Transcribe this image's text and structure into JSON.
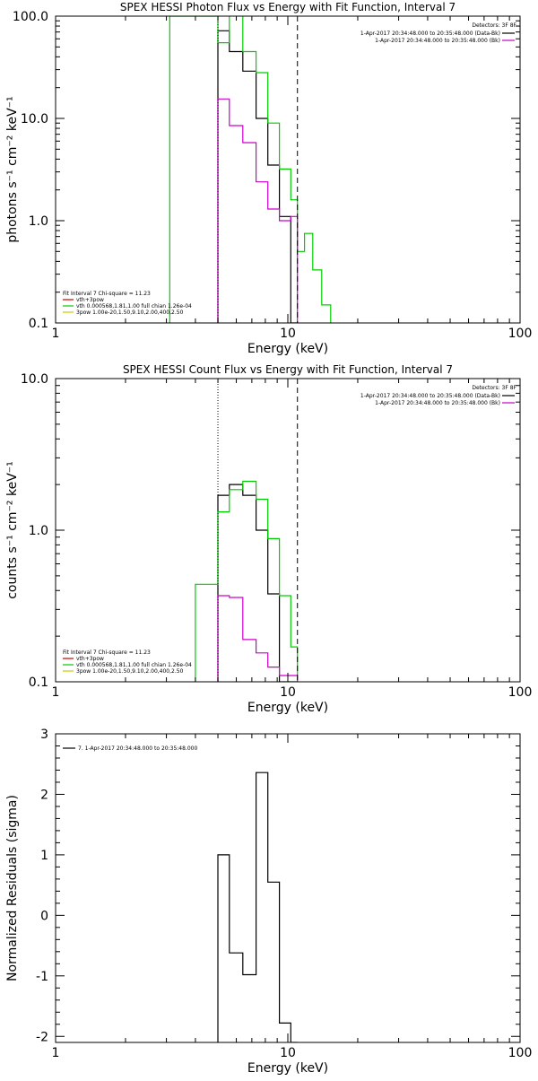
{
  "chart_data": [
    {
      "type": "line",
      "title": "SPEX HESSI Photon Flux vs Energy with Fit Function, Interval 7",
      "xlabel": "Energy (keV)",
      "ylabel": "photons s⁻¹ cm⁻² keV⁻¹",
      "xscale": "log",
      "yscale": "log",
      "xlim": [
        1,
        100
      ],
      "ylim": [
        0.1,
        100
      ],
      "xticks": [
        1,
        10,
        100
      ],
      "xtick_labels": [
        "1",
        "10",
        "100"
      ],
      "yticks": [
        0.1,
        1,
        10,
        100
      ],
      "ytick_labels": [
        "0.1",
        "1.0",
        "10.0",
        "100.0"
      ],
      "vlines": [
        {
          "x": 5.0,
          "style": "dotted"
        },
        {
          "x": 11.0,
          "style": "dashed"
        }
      ],
      "legend_right": {
        "placement": "top-right",
        "header": "Detectors: 3F 8F",
        "entries": [
          {
            "text": "1-Apr-2017 20:34:48.000 to 20:35:48.000 (Data-Bk)",
            "color": "#000000"
          },
          {
            "text": "1-Apr-2017 20:34:48.000 to 20:35:48.000 (Bk)",
            "color": "#cc00cc"
          }
        ]
      },
      "legend_left": {
        "placement": "bottom-left",
        "header": "Fit Interval 7   Chi-square = 11.23",
        "entries": [
          {
            "text": "vth+3pow",
            "color": "#cc0000"
          },
          {
            "text": "vth 0.000568,1.81,1.00  full chian 1.26e-04",
            "color": "#00cc00"
          },
          {
            "text": "3pow 1.00e-20,1.50,9.10,2.00,400,2.50",
            "color": "#cccc00"
          }
        ]
      },
      "series": [
        {
          "color": "#000000",
          "edges": [
            5.0,
            5.6,
            6.4,
            7.3,
            8.2,
            9.2,
            10.3,
            11.0
          ],
          "values": [
            72,
            45,
            29,
            10,
            3.5,
            1.1,
            0.1
          ]
        },
        {
          "color": "#00cc00",
          "edges": [
            3.1,
            5.0,
            5.6,
            6.4,
            7.3,
            8.2,
            9.2,
            10.3,
            11.0,
            11.8,
            12.8,
            14.0,
            15.3
          ],
          "values": [
            100,
            55,
            105,
            45,
            28,
            9,
            3.2,
            1.6,
            0.5,
            0.75,
            0.33,
            0.15,
            0.1
          ]
        },
        {
          "color": "#cc00cc",
          "edges": [
            5.0,
            5.6,
            6.4,
            7.3,
            8.2,
            9.2,
            10.3,
            11.0
          ],
          "values": [
            15.5,
            8.5,
            5.8,
            2.4,
            1.3,
            1.0,
            1.1
          ]
        }
      ]
    },
    {
      "type": "line",
      "title": "SPEX HESSI Count Flux vs Energy with Fit Function, Interval 7",
      "xlabel": "Energy (keV)",
      "ylabel": "counts s⁻¹ cm⁻² keV⁻¹",
      "xscale": "log",
      "yscale": "log",
      "xlim": [
        1,
        100
      ],
      "ylim": [
        0.1,
        10
      ],
      "xticks": [
        1,
        10,
        100
      ],
      "xtick_labels": [
        "1",
        "10",
        "100"
      ],
      "yticks": [
        0.1,
        1,
        10
      ],
      "ytick_labels": [
        "0.1",
        "1.0",
        "10.0"
      ],
      "vlines": [
        {
          "x": 5.0,
          "style": "dotted"
        },
        {
          "x": 11.0,
          "style": "dashed"
        }
      ],
      "legend_right": {
        "placement": "top-right",
        "header": "Detectors: 3F 8F",
        "entries": [
          {
            "text": "1-Apr-2017 20:34:48.000 to 20:35:48.000 (Data-Bk)",
            "color": "#000000"
          },
          {
            "text": "1-Apr-2017 20:34:48.000 to 20:35:48.000 (Bk)",
            "color": "#cc00cc"
          }
        ]
      },
      "legend_left": {
        "placement": "bottom-left",
        "header": "Fit Interval 7   Chi-square = 11.23",
        "entries": [
          {
            "text": "vth+3pow",
            "color": "#cc0000"
          },
          {
            "text": "vth 0.000568,1.81,1.00  full chian 1.26e-04",
            "color": "#00cc00"
          },
          {
            "text": "3pow 1.00e-20,1.50,9.10,2.00,400,2.50",
            "color": "#cccc00"
          }
        ]
      },
      "series": [
        {
          "color": "#000000",
          "edges": [
            5.0,
            5.6,
            6.4,
            7.3,
            8.2,
            9.2,
            10.3,
            11.0
          ],
          "values": [
            1.7,
            2.0,
            1.7,
            1.0,
            0.38,
            0.1,
            0.1
          ]
        },
        {
          "color": "#00cc00",
          "edges": [
            4.0,
            5.0,
            5.6,
            6.4,
            7.3,
            8.2,
            9.2,
            10.3,
            11.0
          ],
          "values": [
            0.44,
            1.32,
            1.85,
            2.1,
            1.6,
            0.88,
            0.37,
            0.17
          ]
        },
        {
          "color": "#cc00cc",
          "edges": [
            5.0,
            5.6,
            6.4,
            7.3,
            8.2,
            9.2,
            10.3,
            11.0
          ],
          "values": [
            0.37,
            0.36,
            0.19,
            0.155,
            0.125,
            0.11,
            0.11
          ]
        }
      ]
    },
    {
      "type": "line",
      "title": "",
      "xlabel": "Energy (keV)",
      "ylabel": "Normalized Residuals (sigma)",
      "xscale": "log",
      "yscale": "linear",
      "xlim": [
        1,
        100
      ],
      "ylim": [
        -2.1,
        3
      ],
      "xticks": [
        1,
        10,
        100
      ],
      "xtick_labels": [
        "1",
        "10",
        "100"
      ],
      "yticks": [
        -2,
        -1,
        0,
        1,
        2,
        3
      ],
      "ytick_labels": [
        "-2",
        "-1",
        "0",
        "1",
        "2",
        "3"
      ],
      "legend_left": {
        "placement": "top-left",
        "header": "",
        "entries": [
          {
            "text": "7.  1-Apr-2017 20:34:48.000 to 20:35:48.000",
            "color": "#000000"
          }
        ]
      },
      "series": [
        {
          "color": "#000000",
          "edges": [
            5.0,
            5.6,
            6.4,
            7.3,
            8.2,
            9.2,
            10.3,
            11.0
          ],
          "values": [
            1.0,
            -0.62,
            -0.98,
            2.36,
            0.55,
            -1.78,
            -2.1
          ]
        }
      ]
    }
  ]
}
